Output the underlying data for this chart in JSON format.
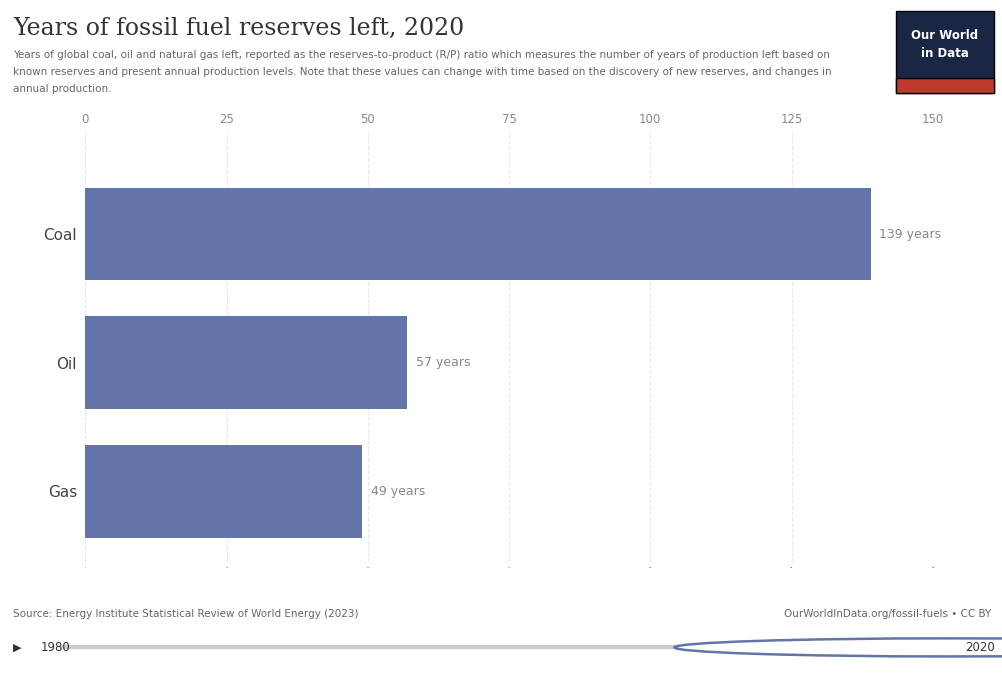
{
  "title": "Years of fossil fuel reserves left, 2020",
  "subtitle_line1": "Years of global coal, oil and natural gas left, reported as the reserves-to-product (R/P) ratio which measures the number of years of production left based on",
  "subtitle_line2": "known reserves and present annual production levels. Note that these values can change with time based on the discovery of new reserves, and changes in",
  "subtitle_line3": "annual production.",
  "categories": [
    "Coal",
    "Oil",
    "Gas"
  ],
  "values": [
    139,
    57,
    49
  ],
  "labels": [
    "139 years",
    "57 years",
    "49 years"
  ],
  "bar_color": "#6375a8",
  "background_color": "#ffffff",
  "source_text": "Source: Energy Institute Statistical Review of World Energy (2023)",
  "url_text": "OurWorldInData.org/fossil-fuels • CC BY",
  "owid_box_top_color": "#1a2744",
  "owid_box_bottom_color": "#c0392b",
  "owid_text": "Our World\nin Data",
  "timeline_start": "1980",
  "timeline_end": "2020",
  "xlabel_max": 150,
  "grid_color": "#e8e8e8",
  "tick_values": [
    0,
    25,
    50,
    75,
    100,
    125,
    150
  ],
  "label_color": "#888888",
  "category_color": "#444444",
  "title_color": "#333333",
  "subtitle_color": "#666666"
}
